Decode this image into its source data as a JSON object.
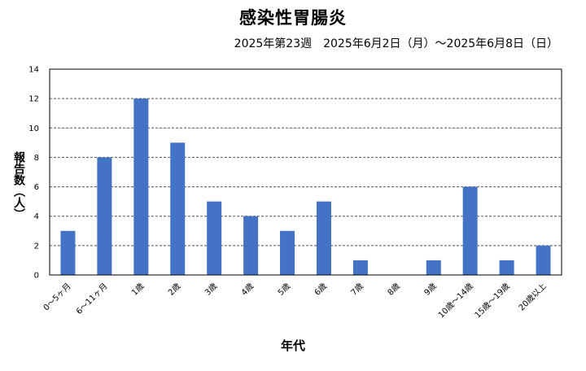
{
  "chart_data": {
    "type": "bar",
    "title": "感染性胃腸炎",
    "subtitle": "2025年第23週　2025年6月2日（月）～2025年6月8日（日）",
    "xlabel": "年代",
    "ylabel": "報告数（人）",
    "categories": [
      "0～5ヶ月",
      "6～11ヶ月",
      "1歳",
      "2歳",
      "3歳",
      "4歳",
      "5歳",
      "6歳",
      "7歳",
      "8歳",
      "9歳",
      "10歳～14歳",
      "15歳～19歳",
      "20歳以上"
    ],
    "values": [
      3,
      8,
      12,
      9,
      5,
      4,
      3,
      5,
      1,
      0,
      1,
      6,
      1,
      2
    ],
    "ylim": [
      0,
      14
    ],
    "yticks": [
      0,
      2,
      4,
      6,
      8,
      10,
      12,
      14
    ],
    "grid": "y-dashed",
    "legend": "none",
    "bar_color": "#4472C4"
  }
}
